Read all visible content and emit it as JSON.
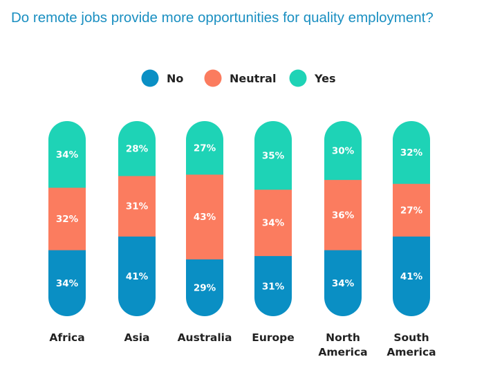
{
  "chart_data": {
    "type": "bar",
    "stacked": true,
    "title": "Do remote jobs provide more opportunities for quality employment?",
    "categories": [
      "Africa",
      "Asia",
      "Australia",
      "Europe",
      "North America",
      "South America"
    ],
    "series": [
      {
        "name": "No",
        "color": "#0a8fc4",
        "values": [
          34,
          41,
          29,
          31,
          34,
          41
        ]
      },
      {
        "name": "Neutral",
        "color": "#fb7c5f",
        "values": [
          32,
          31,
          43,
          34,
          36,
          27
        ]
      },
      {
        "name": "Yes",
        "color": "#1ed3b6",
        "values": [
          34,
          28,
          27,
          35,
          30,
          32
        ]
      }
    ],
    "value_suffix": "%",
    "legend_position": "top-center",
    "grid": false
  }
}
